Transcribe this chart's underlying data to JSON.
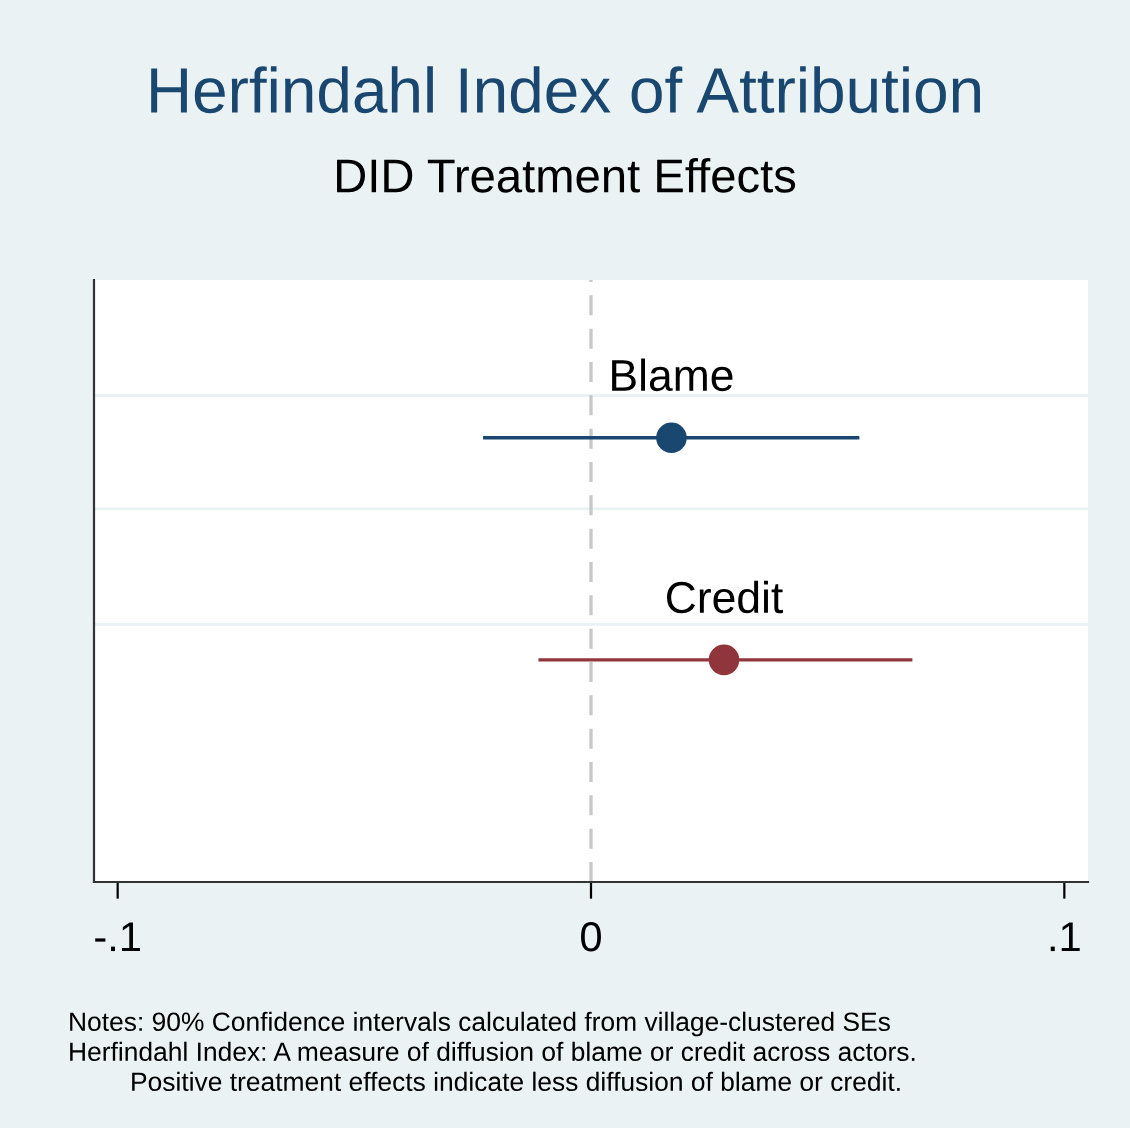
{
  "chart_data": {
    "type": "scatter",
    "orientation": "horizontal",
    "title": "Herfindahl Index of Attribution",
    "subtitle": "DID Treatment Effects",
    "categories": [
      null,
      null
    ],
    "series": [
      {
        "name": "Blame",
        "color": "#1a476f",
        "values": [
          0.017,
          null
        ],
        "errors": [
          [
            -0.0228,
            0.0567
          ],
          null
        ]
      },
      {
        "name": "Credit",
        "color": "#90353b",
        "values": [
          null,
          0.0281
        ],
        "errors": [
          null,
          [
            -0.0111,
            0.0679
          ]
        ]
      }
    ],
    "xlim": [
      -0.105,
      0.105
    ],
    "xticks": [
      {
        "value": -0.1,
        "label": "-.1"
      },
      0,
      {
        "value": 0.1,
        "label": ".1"
      }
    ],
    "ref_lines": [
      {
        "axis": "x",
        "value": 0,
        "color": "#c8c8c8",
        "line_style": "dashed"
      }
    ],
    "grid": "y",
    "marker": "circle",
    "tick_labels": "x",
    "legend": false,
    "annotations": [
      "Notes: 90% Confidence intervals calculated from village-clustered SEs",
      "Herfindahl Index: A measure of diffusion of blame or credit across actors.",
      "Positive treatment effects indicate less diffusion of blame or credit."
    ]
  }
}
